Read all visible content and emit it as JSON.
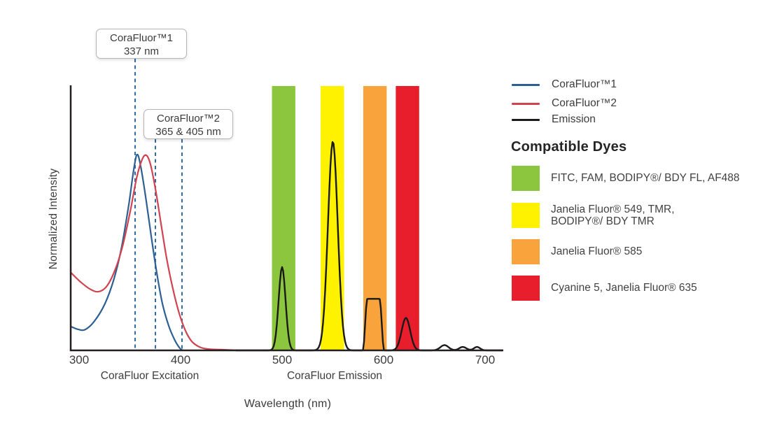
{
  "axes": {
    "y_label": "Normalized Intensity",
    "x_label": "Wavelength (nm)",
    "region_excitation": "CoraFluor Excitation",
    "region_emission": "CoraFluor Emission"
  },
  "callouts": [
    {
      "line1": "CoraFluor™1",
      "line2": "337 nm"
    },
    {
      "line1": "CoraFluor™2",
      "line2": "365 & 405 nm"
    }
  ],
  "legend": {
    "items": [
      {
        "label": "CoraFluor™1",
        "color": "#2e5f91"
      },
      {
        "label": "CoraFluor™2",
        "color": "#d04350"
      },
      {
        "label": "Emission",
        "color": "#1a1a1a"
      }
    ],
    "dyes_heading": "Compatible Dyes",
    "dyes": [
      {
        "color": "#8cc63f",
        "lines": [
          "FITC, FAM, BODIPY®/ BDY FL, AF488"
        ]
      },
      {
        "color": "#fff200",
        "lines": [
          "Janelia Fluor® 549, TMR,",
          "BODIPY®/ BDY TMR"
        ]
      },
      {
        "color": "#f8a33b",
        "lines": [
          "Janelia Fluor® 585"
        ]
      },
      {
        "color": "#e91e2c",
        "lines": [
          "Cyanine 5, Janelia Fluor® 635"
        ]
      }
    ]
  },
  "chart_data": {
    "type": "line",
    "xlabel": "Wavelength (nm)",
    "ylabel": "Normalized Intensity",
    "x_ticks": [
      300,
      400,
      500,
      600,
      700
    ],
    "x_range": [
      292,
      718
    ],
    "ylim": [
      0,
      1
    ],
    "grid": false,
    "legend_position": "right",
    "regions": [
      "CoraFluor Excitation",
      "CoraFluor Emission"
    ],
    "marker_color": "#2f6ba5",
    "excitation_markers": [
      {
        "label": "CoraFluor™1",
        "value_text": "337 nm",
        "nominal_nm": [
          337
        ],
        "depicted_nm": [
          355.2
        ]
      },
      {
        "label": "CoraFluor™2",
        "value_text": "365 & 405 nm",
        "nominal_nm": [
          365,
          405
        ],
        "depicted_nm": [
          375.2,
          401.4
        ]
      }
    ],
    "bands": [
      {
        "name": "green-filter",
        "range_nm": [
          490,
          513
        ],
        "color": "#8cc63f",
        "dyes": "FITC, FAM, BODIPY®/ BDY FL, AF488"
      },
      {
        "name": "yellow-filter",
        "range_nm": [
          538,
          561
        ],
        "color": "#fff200",
        "dyes": "Janelia Fluor® 549, TMR, BODIPY®/ BDY TMR"
      },
      {
        "name": "orange-filter",
        "range_nm": [
          580,
          603
        ],
        "color": "#f8a33b",
        "dyes": "Janelia Fluor® 585"
      },
      {
        "name": "red-filter",
        "range_nm": [
          612,
          635
        ],
        "color": "#e91e2c",
        "dyes": "Cyanine 5, Janelia Fluor® 635"
      }
    ],
    "series": [
      {
        "name": "CoraFluor™1",
        "kind": "excitation",
        "color": "#2e5f91",
        "points": [
          [
            292.0,
            0.09
          ],
          [
            299.3,
            0.079
          ],
          [
            306.2,
            0.079
          ],
          [
            315.2,
            0.111
          ],
          [
            325.5,
            0.177
          ],
          [
            334.5,
            0.272
          ],
          [
            342.1,
            0.394
          ],
          [
            349.0,
            0.553
          ],
          [
            353.8,
            0.683
          ],
          [
            357.2,
            0.741
          ],
          [
            360.7,
            0.696
          ],
          [
            365.5,
            0.582
          ],
          [
            371.0,
            0.434
          ],
          [
            376.6,
            0.291
          ],
          [
            382.1,
            0.177
          ],
          [
            388.3,
            0.093
          ],
          [
            394.5,
            0.037
          ],
          [
            399.3,
            0.008
          ],
          [
            402.1,
            0.0
          ]
        ]
      },
      {
        "name": "CoraFluor™2",
        "kind": "excitation",
        "color": "#d04350",
        "points": [
          [
            292.0,
            0.294
          ],
          [
            301.4,
            0.259
          ],
          [
            310.3,
            0.233
          ],
          [
            318.6,
            0.222
          ],
          [
            326.9,
            0.241
          ],
          [
            335.2,
            0.302
          ],
          [
            342.8,
            0.394
          ],
          [
            350.3,
            0.524
          ],
          [
            356.6,
            0.651
          ],
          [
            362.1,
            0.722
          ],
          [
            366.2,
            0.738
          ],
          [
            370.3,
            0.704
          ],
          [
            375.2,
            0.611
          ],
          [
            380.7,
            0.479
          ],
          [
            386.2,
            0.349
          ],
          [
            392.4,
            0.233
          ],
          [
            398.6,
            0.14
          ],
          [
            404.8,
            0.074
          ],
          [
            411.0,
            0.034
          ],
          [
            418.6,
            0.013
          ],
          [
            426.9,
            0.005
          ],
          [
            439.3,
            0.003
          ],
          [
            456.6,
            0.0
          ]
        ]
      },
      {
        "name": "Emission",
        "kind": "emission",
        "color": "#1a1a1a",
        "peaks": [
          {
            "nm": 500,
            "intensity": 0.315,
            "sigma": 3.4
          },
          {
            "nm": 550,
            "intensity": 0.79,
            "sigma": 4.8
          },
          {
            "nm": 590,
            "intensity": 0.195,
            "flat_top": {
              "plateau": 6,
              "ramp": 4.5
            }
          },
          {
            "nm": 622,
            "intensity": 0.123,
            "sigma": 4.2
          },
          {
            "nm": 660,
            "intensity": 0.02,
            "sigma": 4.0
          },
          {
            "nm": 678,
            "intensity": 0.013,
            "sigma": 3.5
          },
          {
            "nm": 692,
            "intensity": 0.013,
            "sigma": 3.0
          }
        ]
      }
    ]
  }
}
